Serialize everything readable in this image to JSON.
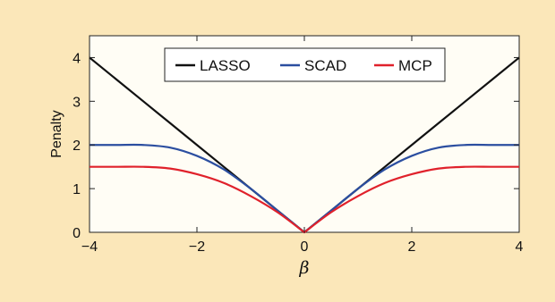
{
  "chart_data": {
    "type": "line",
    "title": "",
    "xlabel": "β",
    "ylabel": "Penalty",
    "xlim": [
      -4,
      4
    ],
    "ylim": [
      0,
      4.5
    ],
    "xticks": [
      -4,
      -2,
      0,
      2,
      4
    ],
    "xtick_labels": [
      "−4",
      "−2",
      "0",
      "2",
      "4"
    ],
    "yticks": [
      0,
      1,
      2,
      3,
      4
    ],
    "ytick_labels": [
      "0",
      "1",
      "2",
      "3",
      "4"
    ],
    "grid": false,
    "legend_position": "top-center",
    "x": [
      -4,
      -3.5,
      -3,
      -2.5,
      -2,
      -1.5,
      -1,
      -0.5,
      0,
      0.5,
      1,
      1.5,
      2,
      2.5,
      3,
      3.5,
      4
    ],
    "series": [
      {
        "name": "LASSO",
        "color": "#111111",
        "values": [
          4,
          3.5,
          3,
          2.5,
          2,
          1.5,
          1,
          0.5,
          0,
          0.5,
          1,
          1.5,
          2,
          2.5,
          3,
          3.5,
          4
        ]
      },
      {
        "name": "SCAD",
        "color": "#2b4ea0",
        "values": [
          2,
          2,
          2,
          1.94,
          1.75,
          1.44,
          1,
          0.5,
          0,
          0.5,
          1,
          1.44,
          1.75,
          1.94,
          2,
          2,
          2
        ]
      },
      {
        "name": "MCP",
        "color": "#e0212b",
        "values": [
          1.5,
          1.5,
          1.5,
          1.46,
          1.33,
          1.13,
          0.83,
          0.46,
          0,
          0.46,
          0.83,
          1.13,
          1.33,
          1.46,
          1.5,
          1.5,
          1.5
        ]
      }
    ]
  }
}
